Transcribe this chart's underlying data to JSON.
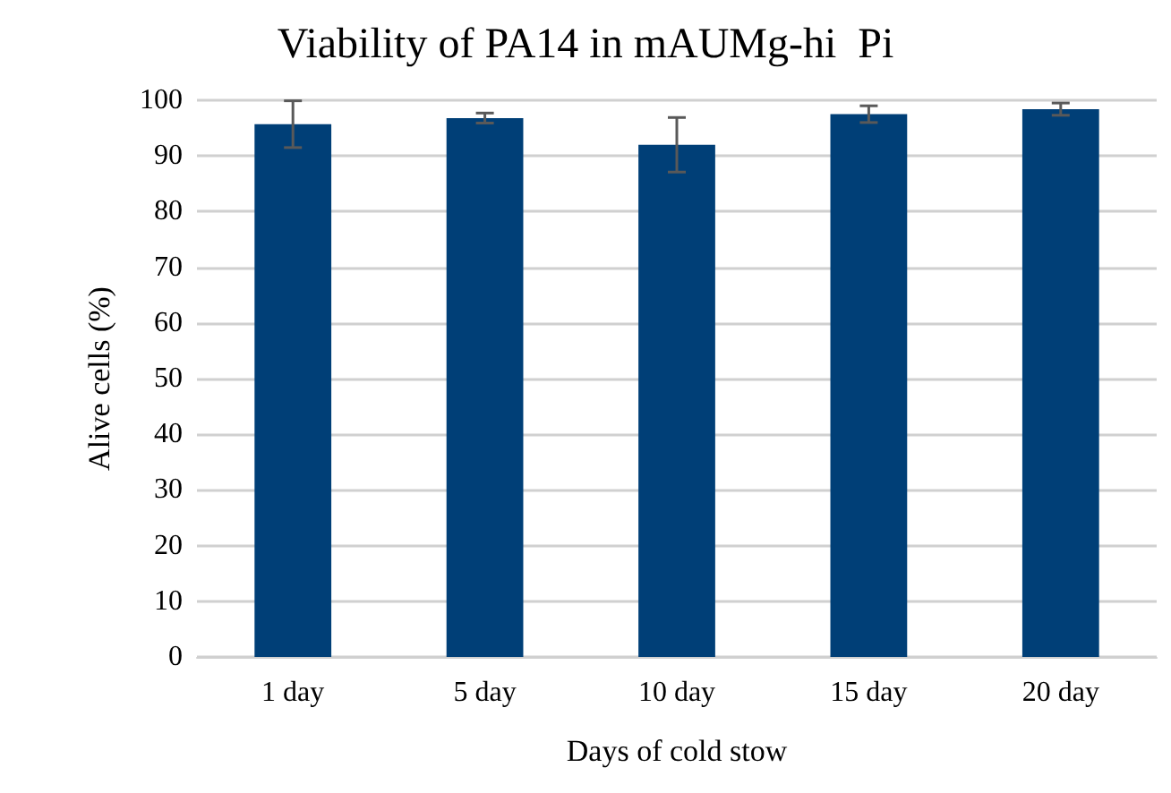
{
  "chart_data": {
    "type": "bar",
    "title": "Viability of PA14 in mAUMg-hi  Pi",
    "xlabel": "Days of cold stow",
    "ylabel": "Alive cells (%)",
    "categories": [
      "1 day",
      "5 day",
      "10 day",
      "15 day",
      "20 day"
    ],
    "values": [
      95.7,
      96.8,
      92.0,
      97.5,
      98.4
    ],
    "errors": [
      4.2,
      0.9,
      4.9,
      1.5,
      1.1
    ],
    "color": "#003f77",
    "ylim": [
      0,
      100
    ],
    "yticks": [
      0,
      10,
      20,
      30,
      40,
      50,
      60,
      70,
      80,
      90,
      100
    ],
    "grid": "y"
  }
}
